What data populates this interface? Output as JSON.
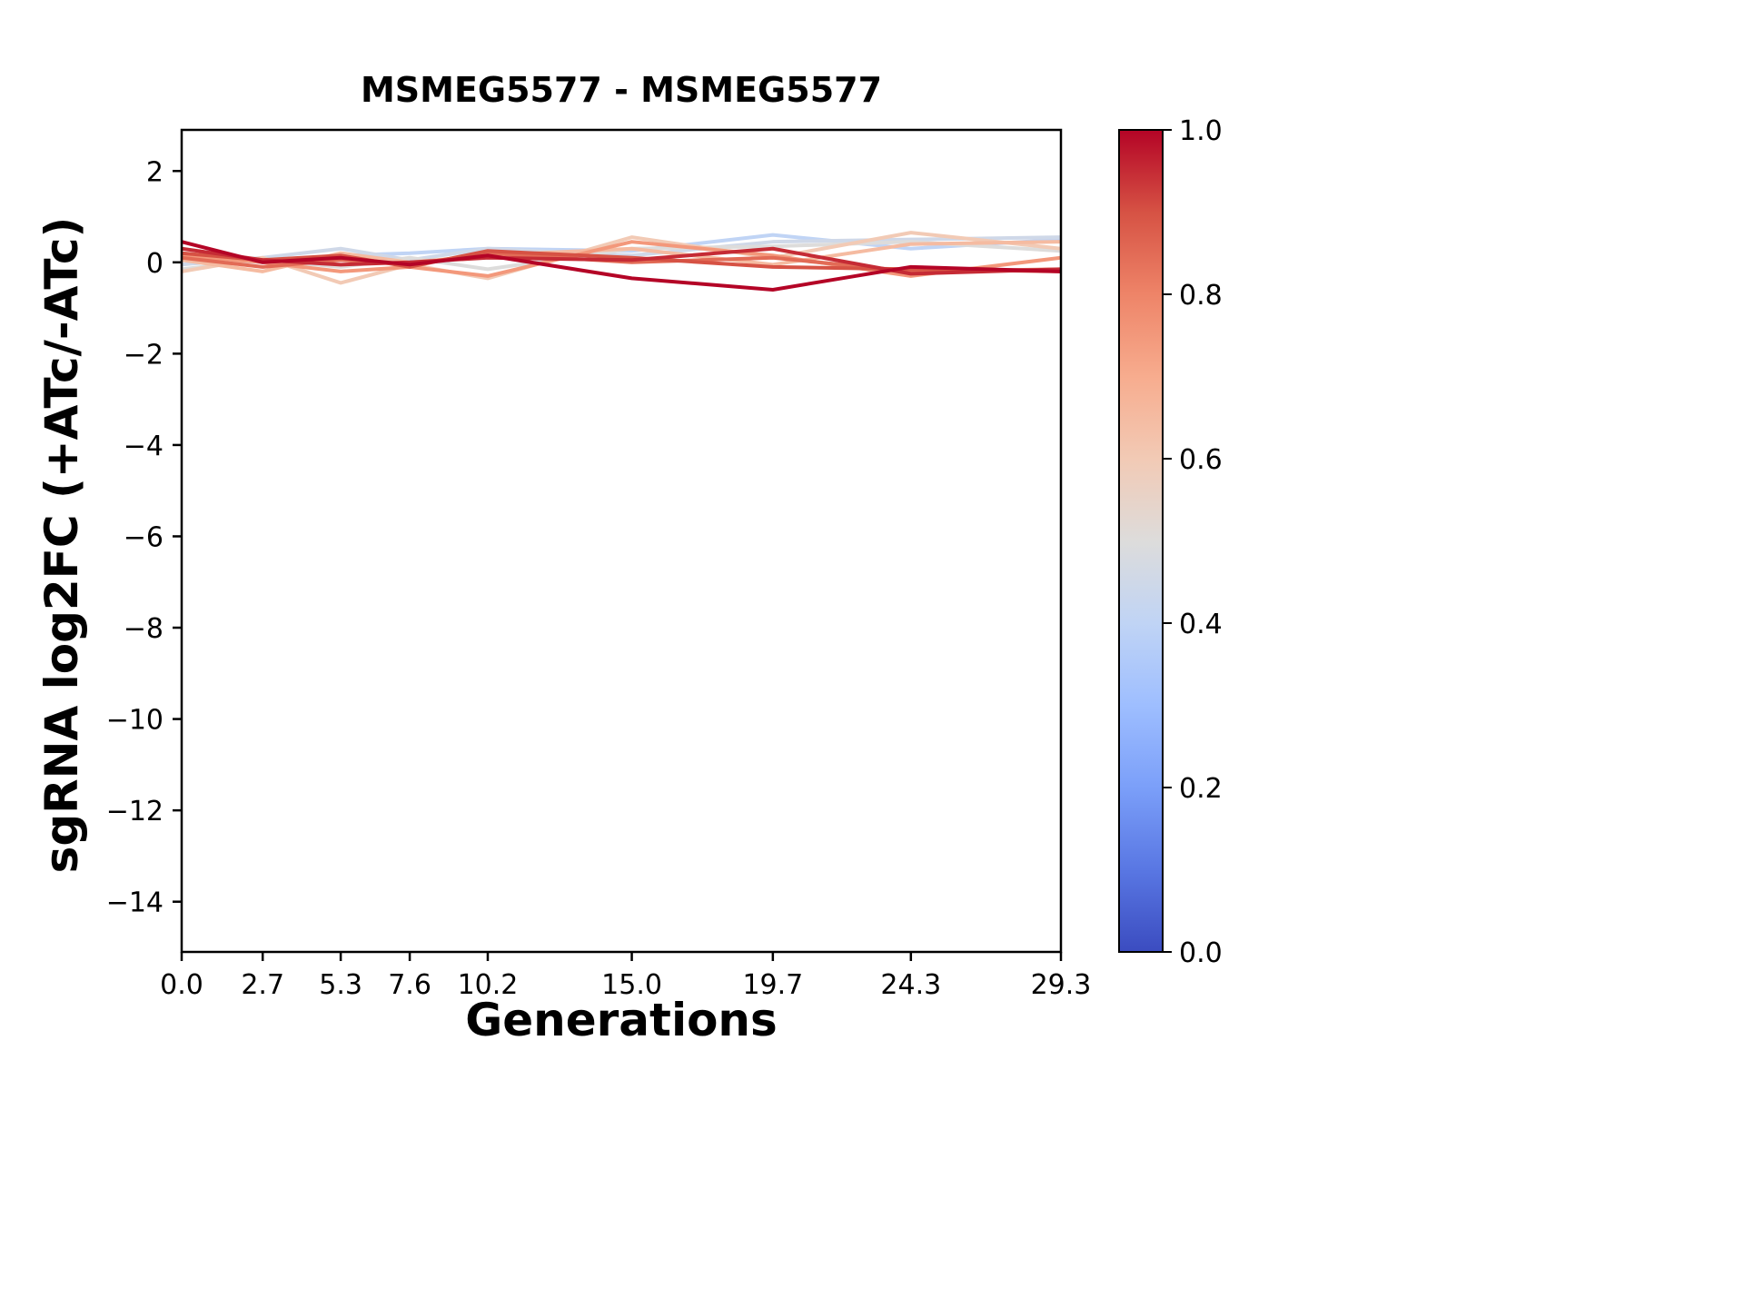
{
  "chart_data": {
    "type": "line",
    "title": "MSMEG5577 - MSMEG5577",
    "xlabel": "Generations",
    "ylabel": "sgRNA log2FC (+ATc/-ATc)",
    "x": [
      0.0,
      2.7,
      5.3,
      7.6,
      10.2,
      15.0,
      19.7,
      24.3,
      29.3
    ],
    "xtick_labels": [
      "0.0",
      "2.7",
      "5.3",
      "7.6",
      "10.2",
      "15.0",
      "19.7",
      "24.3",
      "29.3"
    ],
    "yticks": [
      {
        "value": 2,
        "label": "2"
      },
      {
        "value": 0,
        "label": "0"
      },
      {
        "value": -2,
        "label": "−2"
      },
      {
        "value": -4,
        "label": "−4"
      },
      {
        "value": -6,
        "label": "−6"
      },
      {
        "value": -8,
        "label": "−8"
      },
      {
        "value": -10,
        "label": "−10"
      },
      {
        "value": -12,
        "label": "−12"
      },
      {
        "value": -14,
        "label": "−14"
      }
    ],
    "xlim": [
      0,
      29.3
    ],
    "ylim": [
      -15.1,
      2.9
    ],
    "grid": false,
    "legend": "none",
    "series": [
      {
        "color_value": 0.4,
        "values": [
          0.1,
          0.0,
          0.15,
          0.2,
          0.3,
          0.25,
          0.6,
          0.3,
          0.5
        ]
      },
      {
        "color_value": 0.45,
        "values": [
          -0.05,
          0.1,
          0.3,
          0.05,
          0.3,
          0.15,
          0.45,
          0.5,
          0.55
        ]
      },
      {
        "color_value": 0.5,
        "values": [
          -0.15,
          0.05,
          -0.1,
          0.1,
          -0.15,
          0.3,
          0.35,
          0.45,
          0.25
        ]
      },
      {
        "color_value": 0.6,
        "values": [
          -0.2,
          0.1,
          -0.45,
          -0.05,
          -0.35,
          0.55,
          0.1,
          0.65,
          0.3
        ]
      },
      {
        "color_value": 0.65,
        "values": [
          0.05,
          -0.2,
          0.2,
          0.0,
          0.15,
          0.3,
          -0.05,
          0.4,
          0.45
        ]
      },
      {
        "color_value": 0.75,
        "values": [
          0.15,
          0.0,
          -0.2,
          -0.1,
          -0.3,
          0.45,
          0.15,
          -0.3,
          0.1
        ]
      },
      {
        "color_value": 0.85,
        "values": [
          0.1,
          -0.1,
          0.05,
          -0.05,
          0.2,
          0.0,
          0.1,
          -0.2,
          -0.15
        ]
      },
      {
        "color_value": 0.9,
        "values": [
          0.2,
          0.05,
          0.15,
          -0.1,
          0.25,
          0.1,
          -0.1,
          -0.15,
          -0.2
        ]
      },
      {
        "color_value": 0.95,
        "values": [
          0.3,
          0.05,
          -0.05,
          0.0,
          0.1,
          0.05,
          0.3,
          -0.25,
          -0.15
        ]
      },
      {
        "color_value": 1.0,
        "values": [
          0.45,
          0.0,
          0.1,
          -0.05,
          0.15,
          -0.35,
          -0.6,
          -0.1,
          -0.2
        ]
      }
    ],
    "colorbar": {
      "colormap": "coolwarm",
      "ticks": [
        {
          "value": 1.0,
          "label": "1.0"
        },
        {
          "value": 0.8,
          "label": "0.8"
        },
        {
          "value": 0.6,
          "label": "0.6"
        },
        {
          "value": 0.4,
          "label": "0.4"
        },
        {
          "value": 0.2,
          "label": "0.2"
        },
        {
          "value": 0.0,
          "label": "0.0"
        }
      ],
      "stops": [
        [
          0.0,
          "#3b4cc0"
        ],
        [
          0.1,
          "#5977e3"
        ],
        [
          0.2,
          "#7b9ff9"
        ],
        [
          0.3,
          "#9ebeff"
        ],
        [
          0.4,
          "#c0d4f5"
        ],
        [
          0.5,
          "#dddcdb"
        ],
        [
          0.6,
          "#f2cab5"
        ],
        [
          0.7,
          "#f7ac8e"
        ],
        [
          0.8,
          "#ee8468"
        ],
        [
          0.9,
          "#d65244"
        ],
        [
          1.0,
          "#b40426"
        ]
      ]
    }
  }
}
